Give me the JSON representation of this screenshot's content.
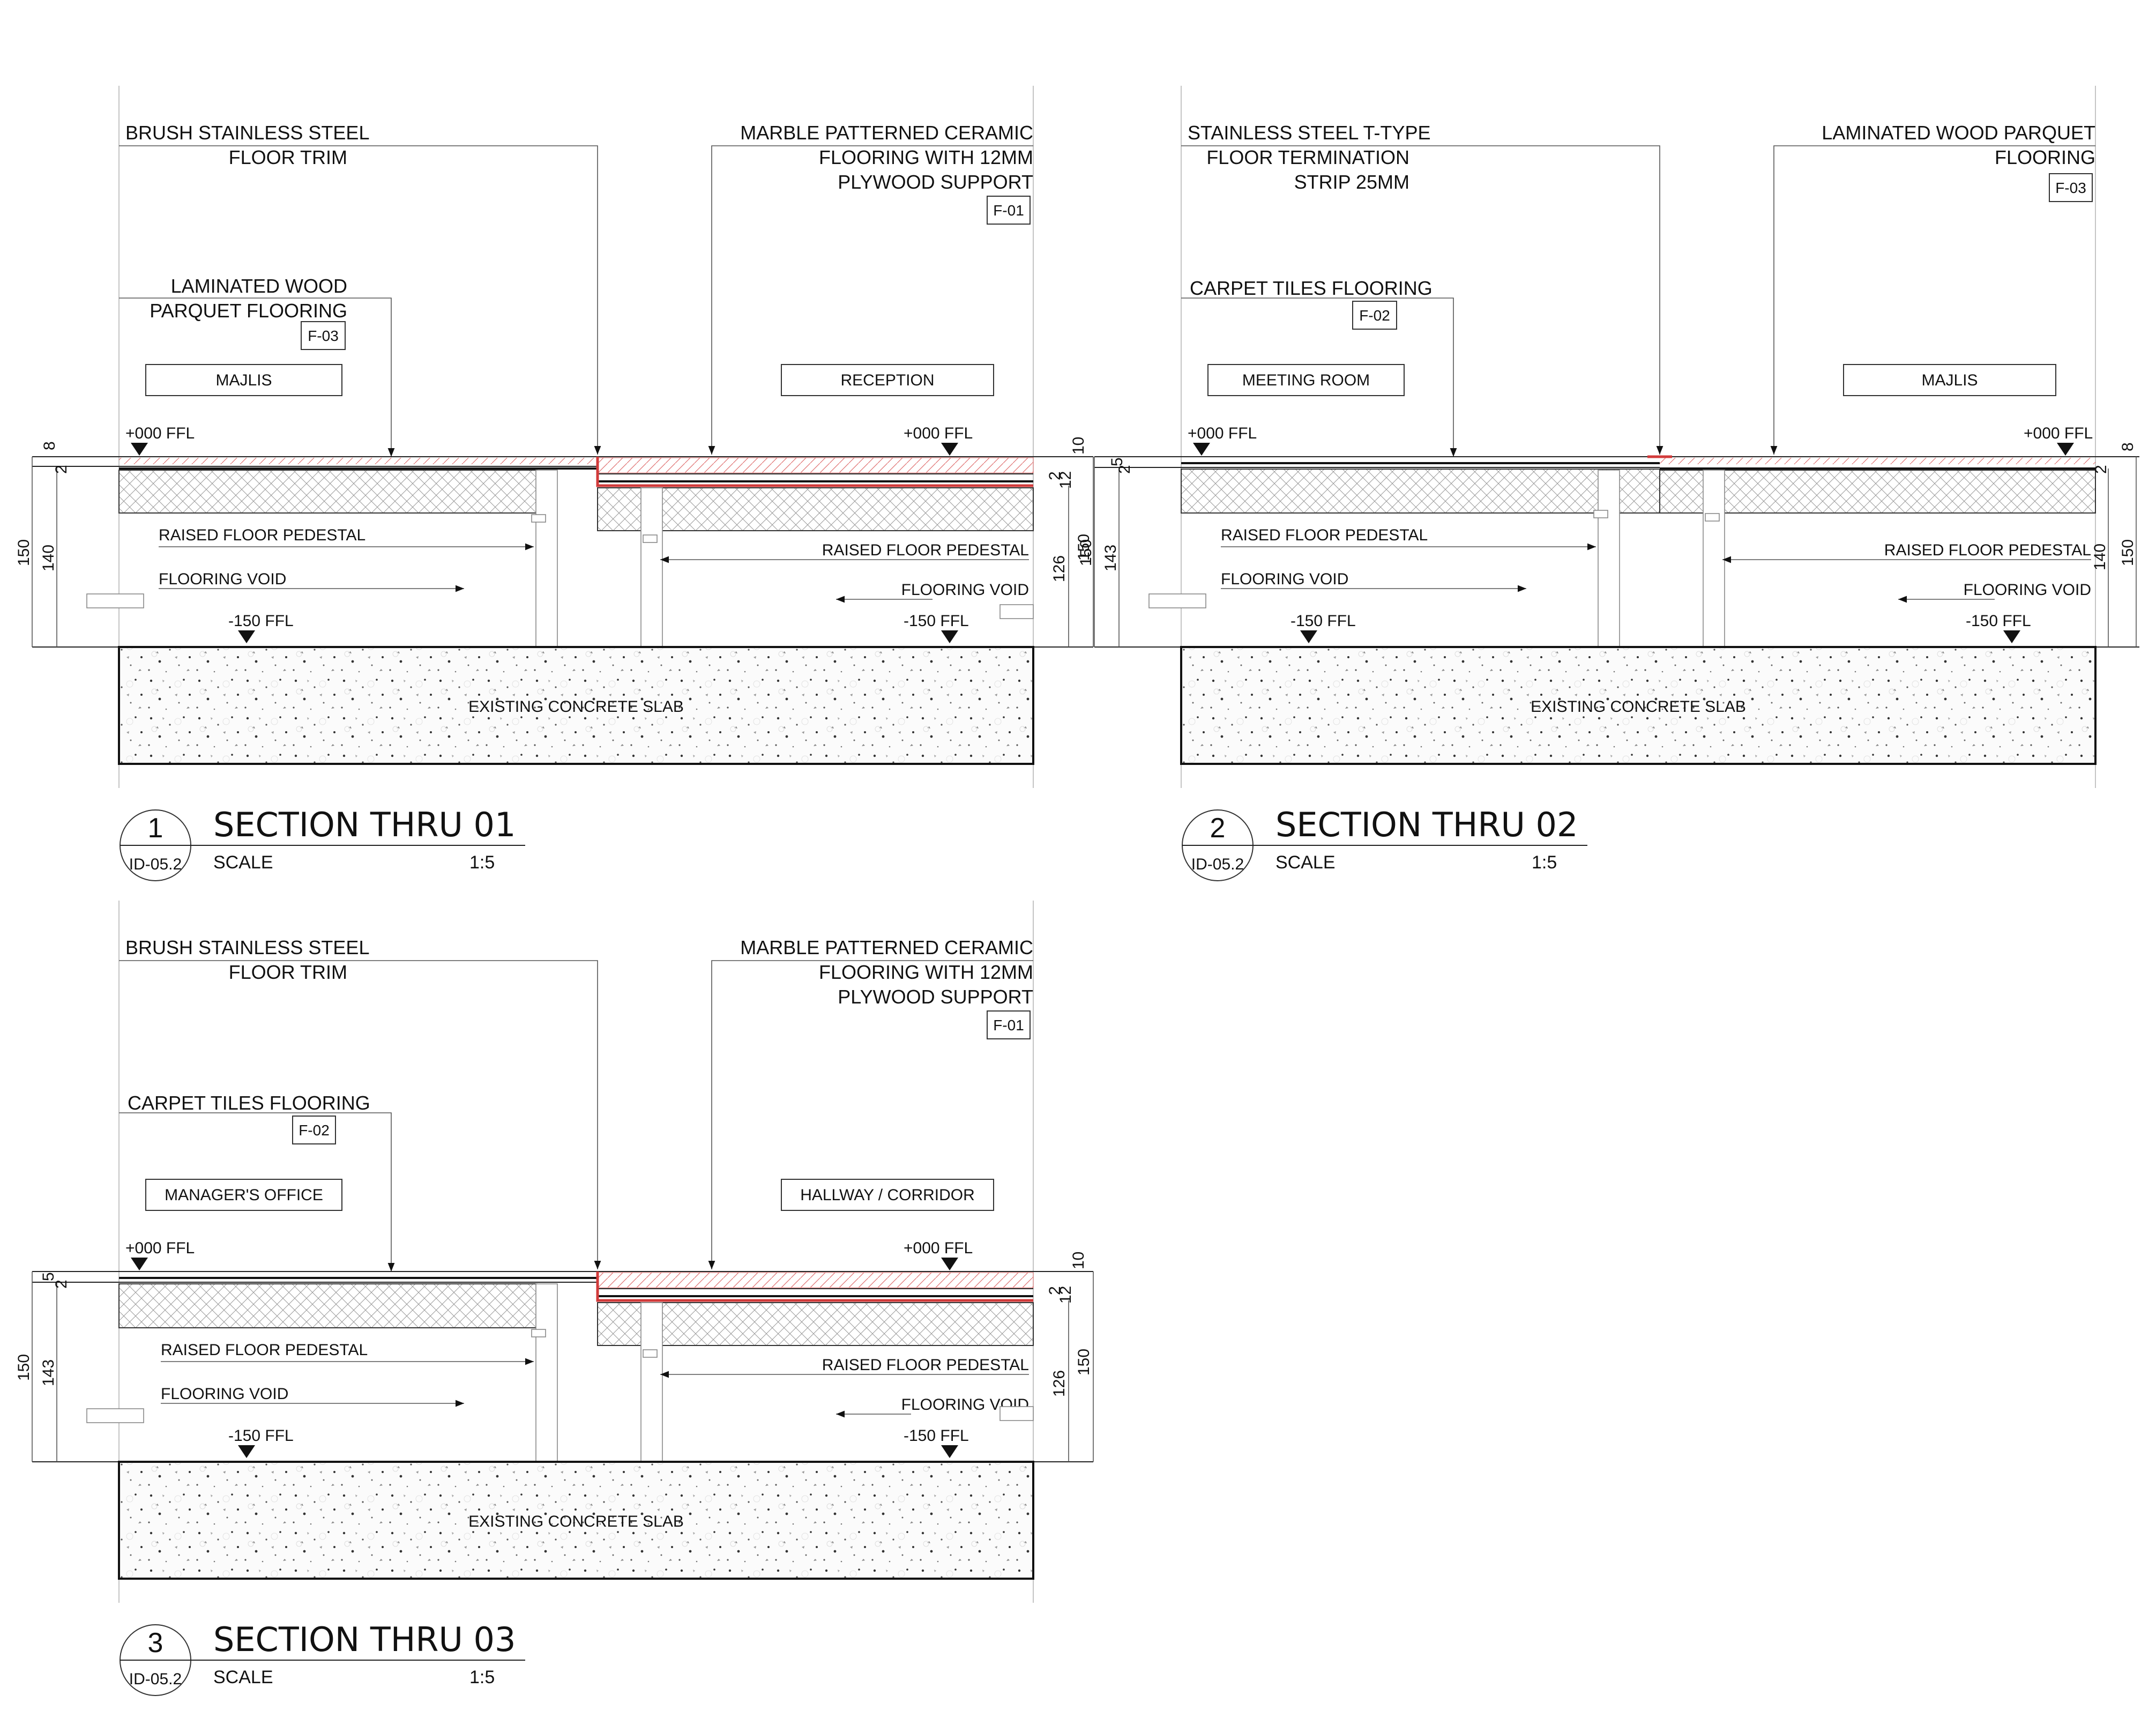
{
  "section1": {
    "label_trim": [
      "BRUSH STAINLESS STEEL",
      "FLOOR TRIM"
    ],
    "label_right": [
      "MARBLE PATTERNED CERAMIC",
      "FLOORING WITH 12MM",
      "PLYWOOD SUPPORT"
    ],
    "tag_right": "F-01",
    "label_left": [
      "LAMINATED WOOD",
      "PARQUET FLOORING"
    ],
    "tag_left": "F-03",
    "room_left": "MAJLIS",
    "room_right": "RECEPTION",
    "ffl_top": "+000 FFL",
    "ffl_bottom": "-150 FFL",
    "pedestal": "RAISED FLOOR PEDESTAL",
    "void": "FLOORING VOID",
    "slab": "EXISTING CONCRETE SLAB",
    "dims_left": [
      "8",
      "2",
      "150",
      "140"
    ],
    "dims_right": [
      "10",
      "2",
      "12",
      "126",
      "150"
    ],
    "number": "1",
    "ref": "ID-05.2",
    "title": "SECTION THRU 01",
    "scale_label": "SCALE",
    "scale": "1:5"
  },
  "section2": {
    "label_trim": [
      "STAINLESS STEEL T-TYPE",
      "FLOOR TERMINATION",
      "STRIP 25MM"
    ],
    "label_right": [
      "LAMINATED WOOD PARQUET",
      "FLOORING"
    ],
    "tag_right": "F-03",
    "label_left": [
      "CARPET TILES FLOORING"
    ],
    "tag_left": "F-02",
    "room_left": "MEETING ROOM",
    "room_right": "MAJLIS",
    "ffl_top": "+000 FFL",
    "ffl_bottom": "-150 FFL",
    "pedestal": "RAISED FLOOR PEDESTAL",
    "void": "FLOORING VOID",
    "slab": "EXISTING CONCRETE SLAB",
    "dims_left": [
      "5",
      "2",
      "150",
      "143"
    ],
    "dims_right": [
      "8",
      "2",
      "140",
      "150"
    ],
    "number": "2",
    "ref": "ID-05.2",
    "title": "SECTION THRU 02",
    "scale_label": "SCALE",
    "scale": "1:5"
  },
  "section3": {
    "label_trim": [
      "BRUSH STAINLESS STEEL",
      "FLOOR TRIM"
    ],
    "label_right": [
      "MARBLE PATTERNED CERAMIC",
      "FLOORING WITH 12MM",
      "PLYWOOD SUPPORT"
    ],
    "tag_right": "F-01",
    "label_left": [
      "CARPET TILES FLOORING"
    ],
    "tag_left": "F-02",
    "room_left": "MANAGER'S OFFICE",
    "room_right": "HALLWAY / CORRIDOR",
    "ffl_top": "+000 FFL",
    "ffl_bottom": "-150 FFL",
    "pedestal": "RAISED FLOOR PEDESTAL",
    "void": "FLOORING VOID",
    "slab": "EXISTING CONCRETE SLAB",
    "dims_left": [
      "5",
      "2",
      "150",
      "143"
    ],
    "dims_right": [
      "10",
      "2",
      "12",
      "126",
      "150"
    ],
    "number": "3",
    "ref": "ID-05.2",
    "title": "SECTION THRU 03",
    "scale_label": "SCALE",
    "scale": "1:5"
  },
  "colors": {
    "trim": "#d23a3a",
    "ink": "#111111"
  }
}
